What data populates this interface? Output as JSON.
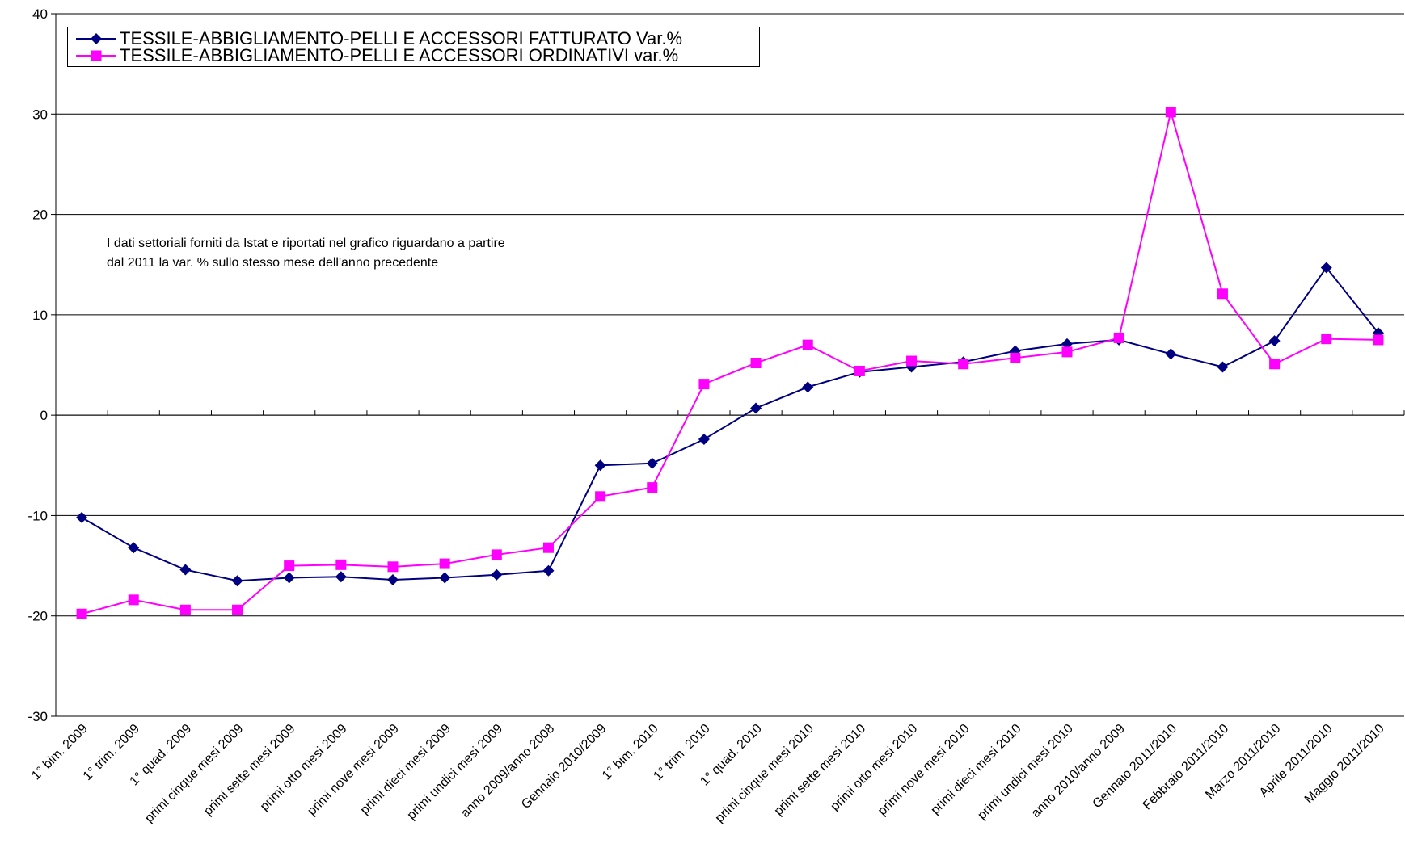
{
  "chart_data": {
    "type": "line",
    "categories": [
      "1° bim. 2009",
      "1° trim. 2009",
      "1° quad. 2009",
      "primi cinque mesi 2009",
      "primi sette mesi 2009",
      "primi otto mesi 2009",
      "primi nove mesi 2009",
      "primi dieci mesi 2009",
      "primi undici mesi 2009",
      "anno 2009/anno 2008",
      "Gennaio 2010/2009",
      "1° bim. 2010",
      "1° trim. 2010",
      "1° quad. 2010",
      "primi cinque mesi 2010",
      "primi sette mesi 2010",
      "primi otto mesi 2010",
      "primi nove mesi 2010",
      "primi dieci mesi 2010",
      "primi undici mesi 2010",
      "anno 2010/anno 2009",
      "Gennaio 2011/2010",
      "Febbraio 2011/2010",
      "Marzo 2011/2010",
      "Aprile 2011/2010",
      "Maggio 2011/2010"
    ],
    "series": [
      {
        "name": "TESSILE-ABBIGLIAMENTO-PELLI E ACCESSORI FATTURATO Var.%",
        "color": "#000080",
        "marker": "diamond",
        "values": [
          -10.2,
          -13.2,
          -15.4,
          -16.5,
          -16.2,
          -16.1,
          -16.4,
          -16.2,
          -15.9,
          -15.5,
          -5.0,
          -4.8,
          -2.4,
          0.7,
          2.8,
          4.3,
          4.8,
          5.3,
          6.4,
          7.1,
          7.5,
          6.1,
          4.8,
          7.4,
          14.7,
          8.2
        ]
      },
      {
        "name": "TESSILE-ABBIGLIAMENTO-PELLI E ACCESSORI ORDINATIVI var.%",
        "color": "#ff00ff",
        "marker": "square",
        "values": [
          -19.8,
          -18.4,
          -19.4,
          -19.4,
          -15.0,
          -14.9,
          -15.1,
          -14.8,
          -13.9,
          -13.2,
          -8.1,
          -7.2,
          3.1,
          5.2,
          7.0,
          4.4,
          5.4,
          5.1,
          5.7,
          6.3,
          7.7,
          30.2,
          12.1,
          5.1,
          7.6,
          7.5
        ]
      }
    ],
    "annotation": [
      "I dati settoriali forniti da Istat e riportati nel grafico riguardano a partire",
      "dal 2011 la var. % sullo stesso mese dell'anno precedente"
    ],
    "ylim": [
      -30,
      40
    ],
    "yticks": [
      -30,
      -20,
      -10,
      0,
      10,
      20,
      30,
      40
    ],
    "grid": true,
    "legend": "upper left"
  }
}
